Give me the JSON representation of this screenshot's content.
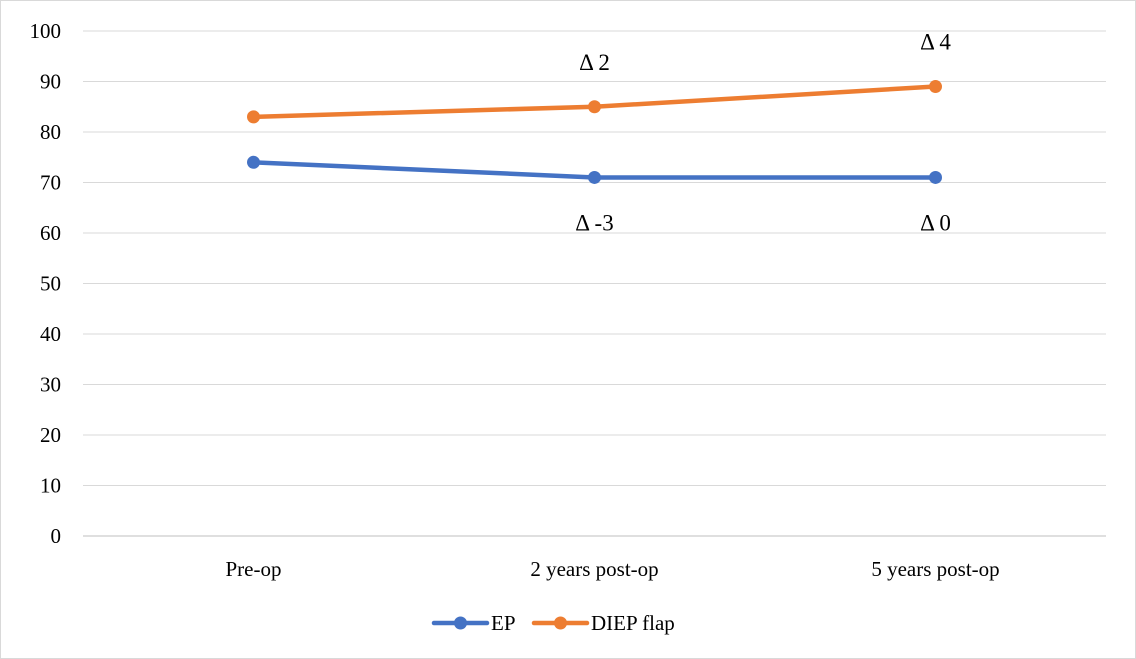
{
  "chart_data": {
    "type": "line",
    "title": "",
    "xlabel": "",
    "ylabel": "",
    "categories": [
      "Pre-op",
      "2 years post-op",
      "5 years post-op"
    ],
    "ylim": [
      0,
      100
    ],
    "yticks": [
      "0",
      "10",
      "20",
      "30",
      "40",
      "50",
      "60",
      "70",
      "80",
      "90",
      "100"
    ],
    "grid": true,
    "legend_position": "bottom",
    "series": [
      {
        "name": "EP",
        "color": "#4472c4",
        "values": [
          74,
          71,
          71
        ]
      },
      {
        "name": "DIEP flap",
        "color": "#ed7d31",
        "values": [
          83,
          85,
          89
        ]
      }
    ],
    "annotations": [
      {
        "text": "Δ 2",
        "series": "DIEP flap",
        "category": "2 years post-op",
        "placement": "above"
      },
      {
        "text": "Δ 4",
        "series": "DIEP flap",
        "category": "5 years post-op",
        "placement": "above"
      },
      {
        "text": "Δ -3",
        "series": "EP",
        "category": "2 years post-op",
        "placement": "below"
      },
      {
        "text": "Δ 0",
        "series": "EP",
        "category": "5 years post-op",
        "placement": "below"
      }
    ]
  }
}
